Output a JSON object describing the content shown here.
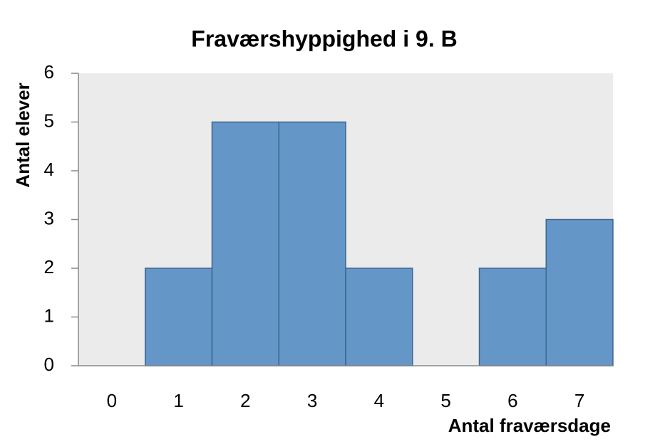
{
  "chart_data": {
    "type": "bar",
    "title": "Fraværshyppighed i 9. B",
    "x_label": "Antal fraværsdage",
    "y_label": "Antal elever",
    "categories": [
      "0",
      "1",
      "2",
      "3",
      "4",
      "5",
      "6",
      "7"
    ],
    "values": [
      0,
      2,
      5,
      5,
      2,
      0,
      2,
      3
    ],
    "color": "#6496c8",
    "ylim": [
      0,
      6
    ],
    "yticks": [
      0,
      1,
      2,
      3,
      4,
      5,
      6
    ],
    "grid": false
  }
}
